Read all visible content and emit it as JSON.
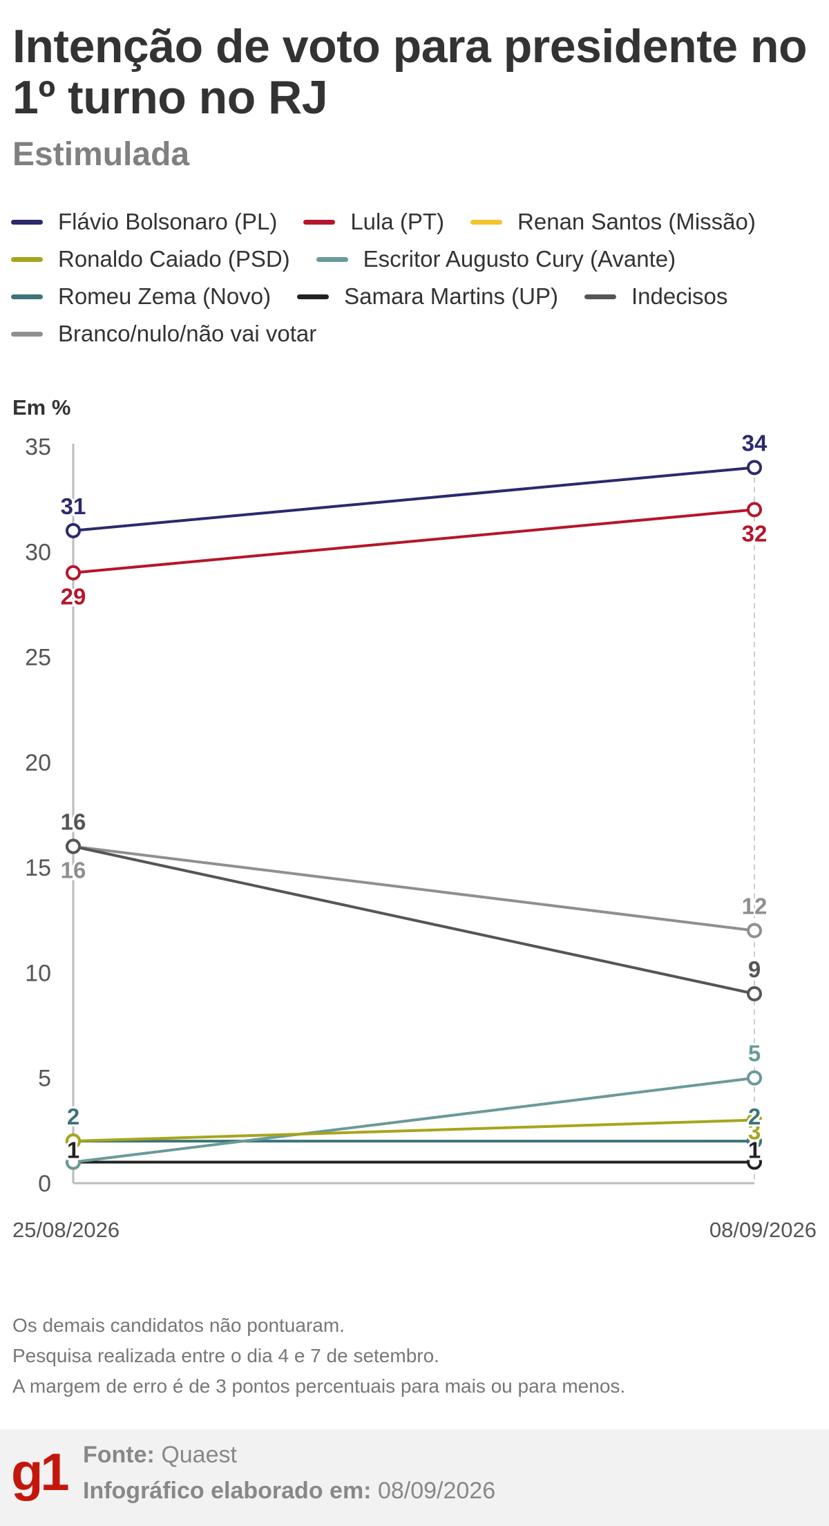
{
  "header": {
    "title": "Intenção de voto para presidente no 1º turno no RJ",
    "subtitle": "Estimulada"
  },
  "notes": [
    "Os demais candidatos não pontuaram.",
    "Pesquisa realizada entre o dia 4 e 7 de setembro.",
    "A margem de erro é de 3 pontos percentuais para mais ou para menos."
  ],
  "footer": {
    "logo": "g1",
    "source_label": "Fonte:",
    "source_value": "Quaest",
    "made_label": "Infográfico elaborado em:",
    "made_value": "08/09/2026"
  },
  "chart_data": {
    "type": "line",
    "title": "Intenção de voto para presidente no 1º turno no RJ",
    "subtitle": "Estimulada",
    "ylabel": "Em %",
    "x": [
      "25/08/2026",
      "08/09/2026"
    ],
    "ylim": [
      0,
      35
    ],
    "yticks": [
      0,
      5,
      10,
      15,
      20,
      25,
      30,
      35
    ],
    "grid": false,
    "legend_position": "top",
    "series": [
      {
        "name": "Flávio Bolsonaro (PL)",
        "color": "#2b2a6e",
        "values": [
          31,
          34
        ],
        "labels": [
          "31",
          "34"
        ]
      },
      {
        "name": "Lula (PT)",
        "color": "#b5162b",
        "values": [
          29,
          32
        ],
        "labels": [
          "29",
          "32"
        ]
      },
      {
        "name": "Renan Santos (Missão)",
        "color": "#f4c42e",
        "values": [
          null,
          null
        ],
        "labels": [
          null,
          null
        ]
      },
      {
        "name": "Ronaldo Caiado (PSD)",
        "color": "#a6a51c",
        "values": [
          2,
          3
        ],
        "labels": [
          null,
          "3"
        ]
      },
      {
        "name": "Escritor Augusto Cury (Avante)",
        "color": "#6a9a9a",
        "values": [
          1,
          5
        ],
        "labels": [
          null,
          "5"
        ]
      },
      {
        "name": "Romeu Zema (Novo)",
        "color": "#3d7478",
        "values": [
          2,
          2
        ],
        "labels": [
          "2",
          "2"
        ]
      },
      {
        "name": "Samara Martins (UP)",
        "color": "#222222",
        "values": [
          1,
          1
        ],
        "labels": [
          "1",
          "1"
        ]
      },
      {
        "name": "Indecisos",
        "color": "#555555",
        "values": [
          16,
          9
        ],
        "labels": [
          "16",
          "9"
        ]
      },
      {
        "name": "Branco/nulo/não vai votar",
        "color": "#8f8f8f",
        "values": [
          16,
          12
        ],
        "labels": [
          "16",
          "12"
        ]
      }
    ]
  }
}
